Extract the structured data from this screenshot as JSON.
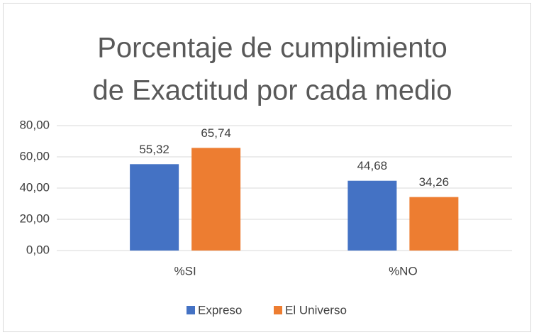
{
  "chart_data": {
    "type": "bar",
    "title": [
      "Porcentaje de cumplimiento",
      "de Exactitud por cada medio"
    ],
    "categories": [
      "%SI",
      "%NO"
    ],
    "series": [
      {
        "name": "Expreso",
        "color": "#4472c4",
        "values": [
          55.32,
          44.68
        ],
        "value_labels": [
          "55,32",
          "44,68"
        ]
      },
      {
        "name": "El Universo",
        "color": "#ed7d31",
        "values": [
          65.74,
          34.26
        ],
        "value_labels": [
          "65,74",
          "34,26"
        ]
      }
    ],
    "ylim": [
      0,
      80
    ],
    "yticks": [
      {
        "value": 0,
        "label": "0,00"
      },
      {
        "value": 20,
        "label": "20,00"
      },
      {
        "value": 40,
        "label": "40,00"
      },
      {
        "value": 60,
        "label": "60,00"
      },
      {
        "value": 80,
        "label": "80,00"
      }
    ],
    "grid": true,
    "legend": "bottom"
  }
}
